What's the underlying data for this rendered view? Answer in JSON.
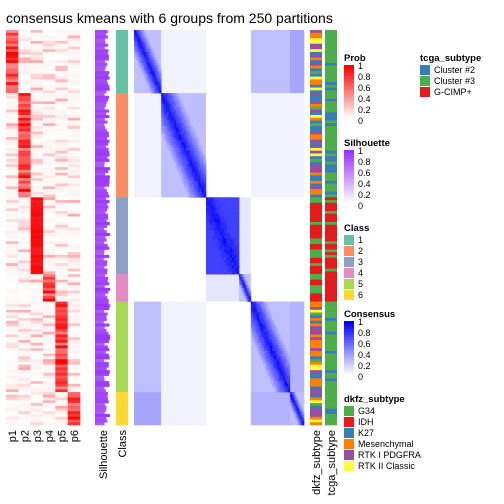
{
  "chart_data": {
    "type": "heatmap",
    "title": "consensus kmeans with 6 groups from 250 partitions",
    "left_columns": [
      "p1",
      "p2",
      "p3",
      "p4",
      "p5",
      "p6"
    ],
    "silhouette_label": "Silhouette",
    "class_label": "Class",
    "right_columns": [
      "dkfz_subtype",
      "tcga_subtype"
    ],
    "groups": [
      {
        "class": "1",
        "size": 23,
        "color": "#66C2A5"
      },
      {
        "class": "2",
        "size": 38,
        "color": "#FC8D62"
      },
      {
        "class": "3",
        "size": 28,
        "color": "#8DA0CB"
      },
      {
        "class": "4",
        "size": 10,
        "color": "#E78AC3"
      },
      {
        "class": "5",
        "size": 33,
        "color": "#A6D854"
      },
      {
        "class": "6",
        "size": 12,
        "color": "#FFD92F"
      }
    ],
    "legends": {
      "prob": {
        "title": "Prob",
        "ticks": [
          "1",
          "0.8",
          "0.6",
          "0.4",
          "0.2",
          "0"
        ],
        "low": "#FFFFFF",
        "high": "#FF0000"
      },
      "silhouette": {
        "title": "Silhouette",
        "ticks": [
          "1",
          "0.8",
          "0.6",
          "0.4",
          "0.2",
          "0"
        ],
        "low": "#FFFFFF",
        "high": "#9A32FF"
      },
      "class": {
        "title": "Class",
        "entries": [
          "1",
          "2",
          "3",
          "4",
          "5",
          "6"
        ],
        "colors": [
          "#66C2A5",
          "#FC8D62",
          "#8DA0CB",
          "#E78AC3",
          "#A6D854",
          "#FFD92F"
        ]
      },
      "consensus": {
        "title": "Consensus",
        "ticks": [
          "1",
          "0.8",
          "0.6",
          "0.4",
          "0.2",
          "0"
        ],
        "low": "#FFFFFF",
        "high": "#0000FF"
      },
      "dkfz_subtype": {
        "title": "dkfz_subtype",
        "entries": [
          "G34",
          "IDH",
          "K27",
          "Mesenchymal",
          "RTK I PDGFRA",
          "RTK II Classic"
        ],
        "colors": [
          "#4DAF4A",
          "#E41A1C",
          "#377EB8",
          "#FF7F00",
          "#984EA3",
          "#FFFF33"
        ]
      },
      "tcga_subtype": {
        "title": "tcga_subtype",
        "entries": [
          "Cluster #2",
          "Cluster #3",
          "G-CIMP+"
        ],
        "colors": [
          "#377EB8",
          "#4DAF4A",
          "#E41A1C"
        ]
      }
    }
  }
}
